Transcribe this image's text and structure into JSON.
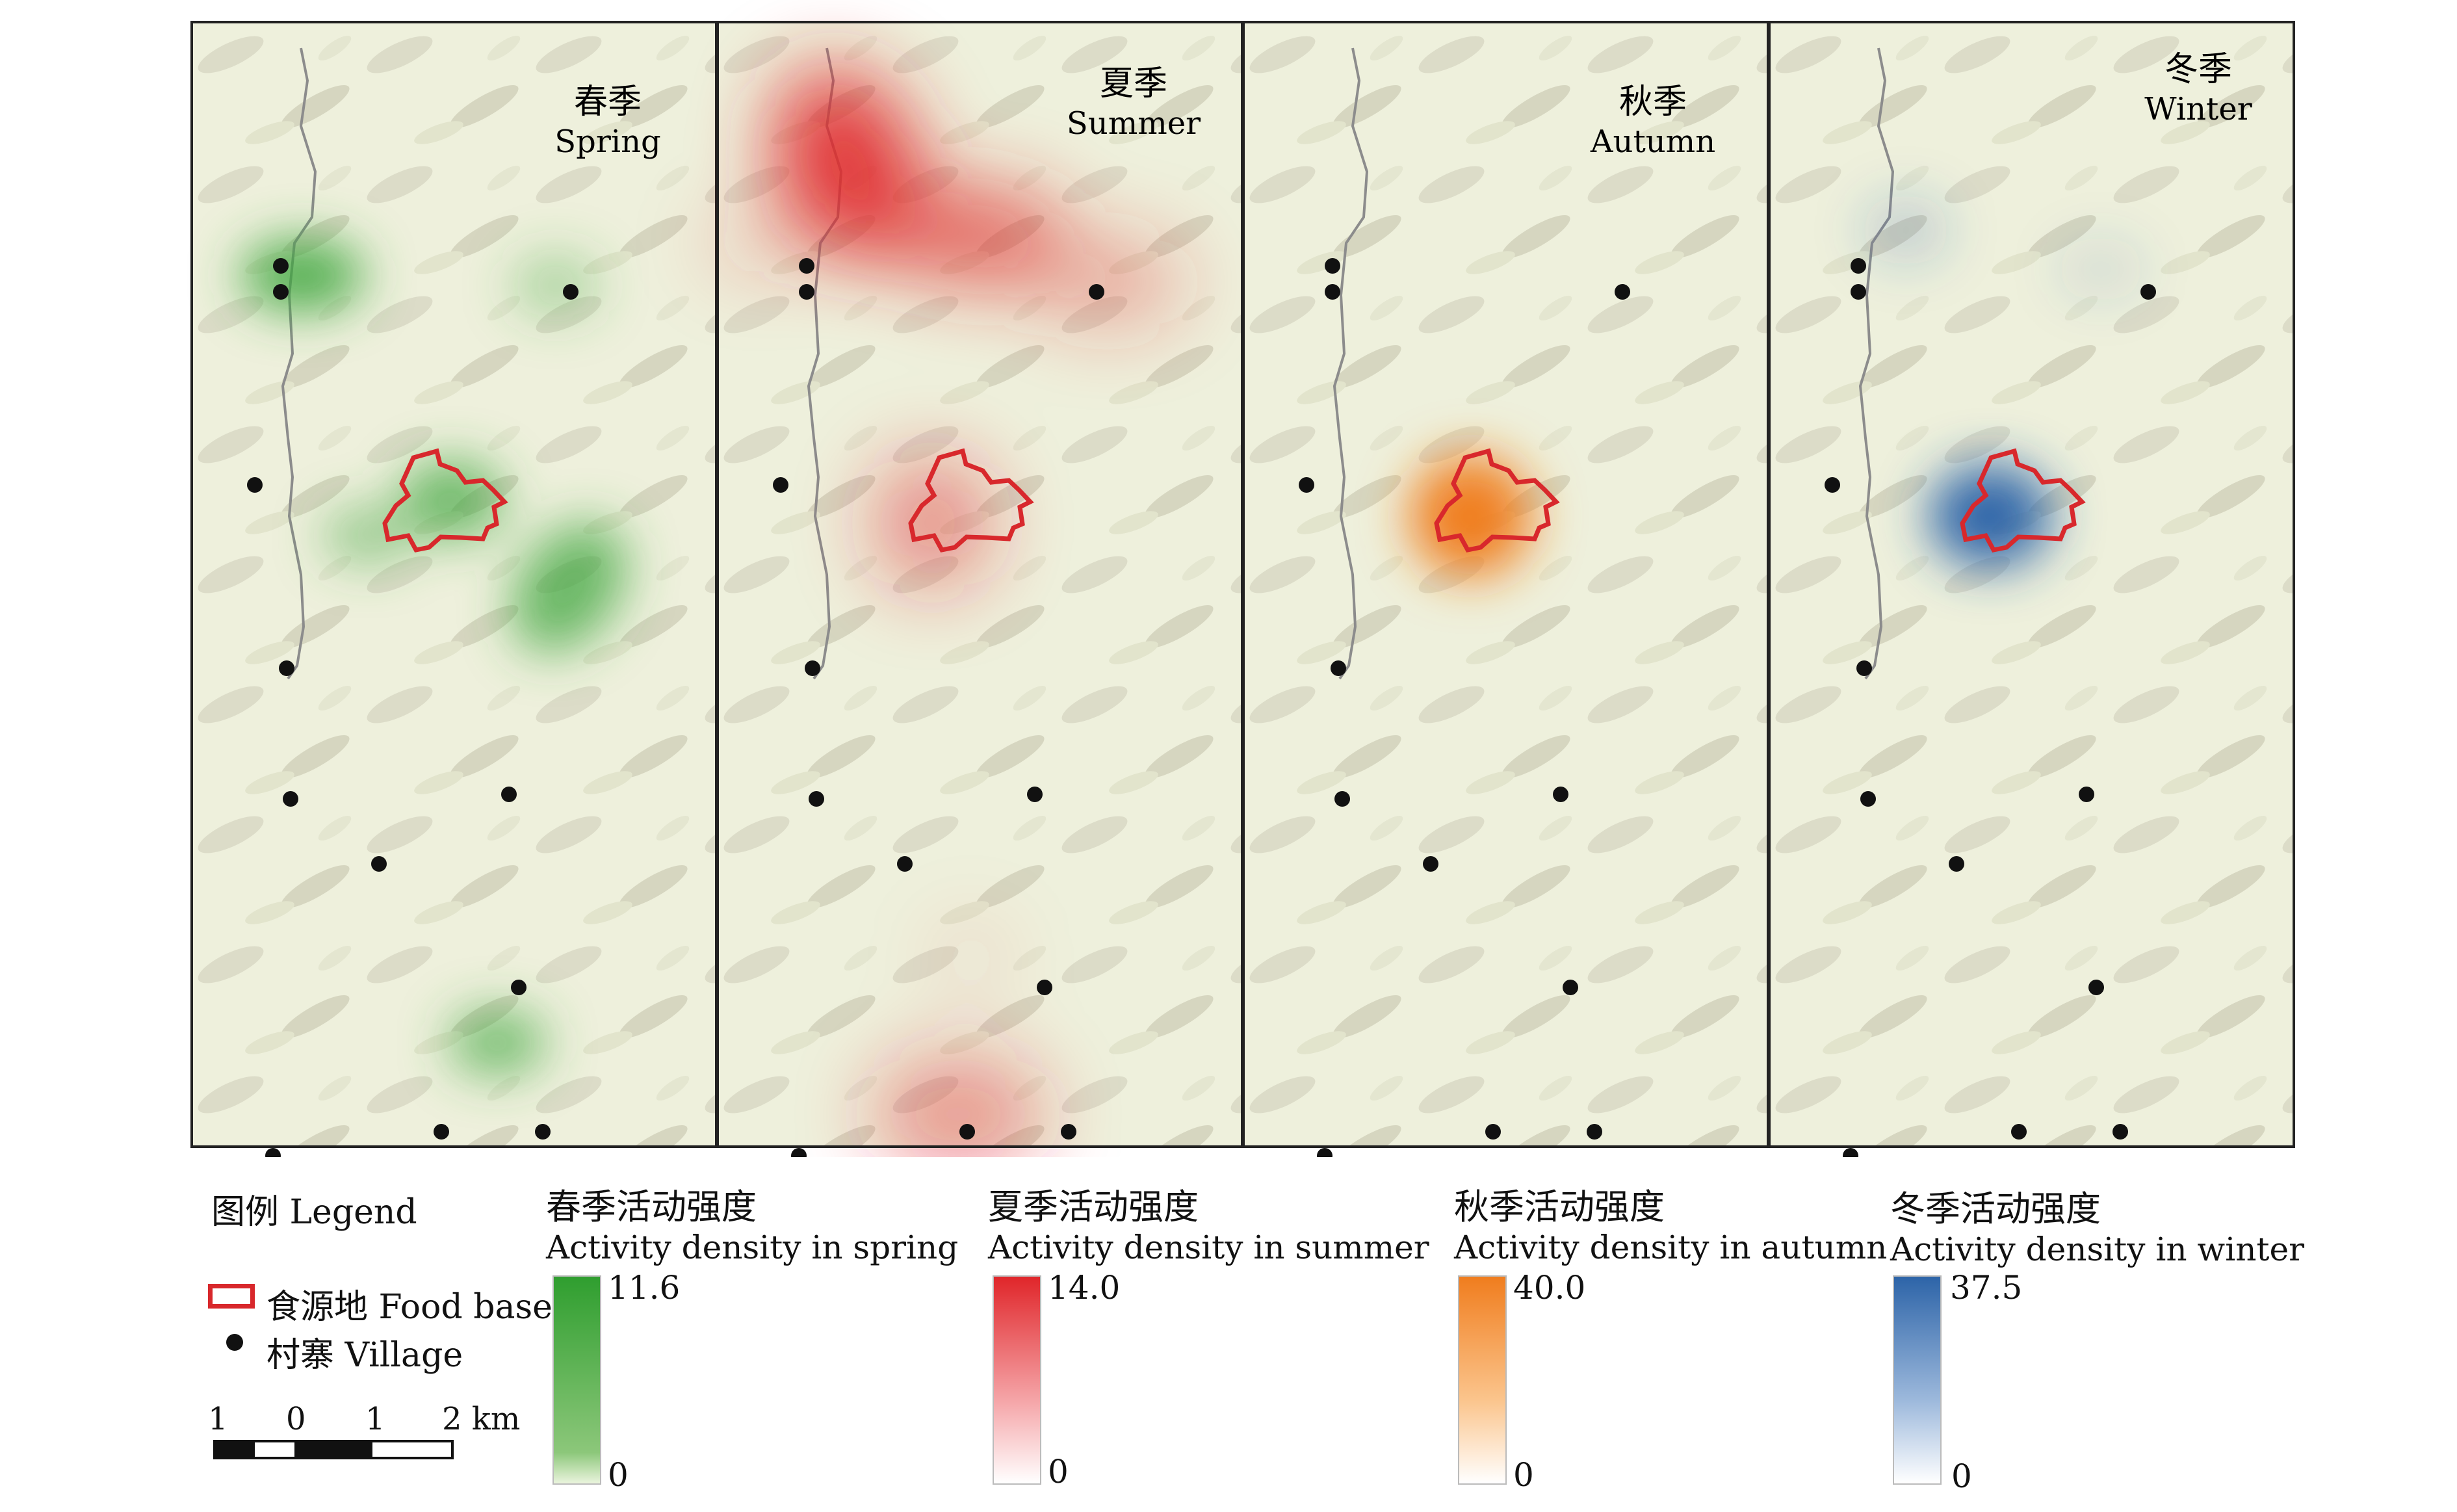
{
  "panels": [
    {
      "id": "spring",
      "season_cn": "春季",
      "season_en": "Spring",
      "color": "#2f9e2f"
    },
    {
      "id": "summer",
      "season_cn": "夏季",
      "season_en": "Summer",
      "color": "#e0262a"
    },
    {
      "id": "autumn",
      "season_cn": "秋季",
      "season_en": "Autumn",
      "color": "#f07d1e"
    },
    {
      "id": "winter",
      "season_cn": "冬季",
      "season_en": "Winter",
      "color": "#2d64a8"
    }
  ],
  "legend": {
    "title": "图例 Legend",
    "food_base": "食源地 Food base",
    "village": "村寨 Village",
    "food_base_color": "#d8282c",
    "scale_labels": [
      "1",
      "0",
      "1",
      "2 km"
    ]
  },
  "density_legends": [
    {
      "title": "春季活动强度",
      "subtitle": "Activity density in spring",
      "max": "11.6",
      "min": "0",
      "color": "#2f9e2f"
    },
    {
      "title": "夏季活动强度",
      "subtitle": "Activity density in summer",
      "max": "14.0",
      "min": "0",
      "color": "#e0262a"
    },
    {
      "title": "秋季活动强度",
      "subtitle": "Activity density in autumn",
      "max": "40.0",
      "min": "0",
      "color": "#f07d1e"
    },
    {
      "title": "冬季活动强度",
      "subtitle": "Activity density in winter",
      "max": "37.5",
      "min": "0",
      "color": "#2d64a8"
    }
  ]
}
